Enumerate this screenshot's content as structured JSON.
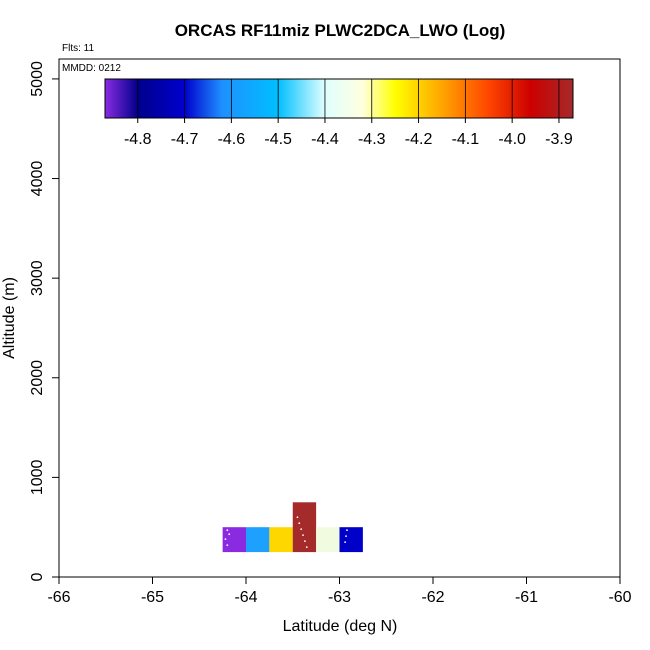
{
  "chart_data": {
    "type": "heatmap",
    "title": "ORCAS RF11miz PLWC2DCA_LWO (Log)",
    "info": {
      "flights": "Flts: 11",
      "mmdd": "MMDD: 0212"
    },
    "xlabel": "Latitude (deg N)",
    "ylabel": "Altitude (m)",
    "xlim": [
      -66,
      -60
    ],
    "ylim": [
      0,
      5200
    ],
    "x_ticks": [
      -66,
      -65,
      -64,
      -63,
      -62,
      -61,
      -60
    ],
    "y_ticks": [
      0,
      1000,
      2000,
      3000,
      4000,
      5000
    ],
    "grid": false,
    "colorbar": {
      "range": [
        -4.87,
        -3.87
      ],
      "ticks": [
        -4.8,
        -4.7,
        -4.6,
        -4.5,
        -4.4,
        -4.3,
        -4.2,
        -4.1,
        -4.0,
        -3.9
      ],
      "tick_labels": [
        "-4.8",
        "-4.7",
        "-4.6",
        "-4.5",
        "-4.4",
        "-4.3",
        "-4.2",
        "-4.1",
        "-4.0",
        "-3.9"
      ],
      "stops": [
        {
          "v": -4.87,
          "color": "#8a2be2"
        },
        {
          "v": -4.8,
          "color": "#00008b"
        },
        {
          "v": -4.7,
          "color": "#0000cd"
        },
        {
          "v": -4.62,
          "color": "#1e90ff"
        },
        {
          "v": -4.5,
          "color": "#00bfff"
        },
        {
          "v": -4.4,
          "color": "#e0ffff"
        },
        {
          "v": -4.32,
          "color": "#ffffe0"
        },
        {
          "v": -4.25,
          "color": "#ffff00"
        },
        {
          "v": -4.15,
          "color": "#ffa500"
        },
        {
          "v": -4.05,
          "color": "#ff4500"
        },
        {
          "v": -3.96,
          "color": "#cc0000"
        },
        {
          "v": -3.87,
          "color": "#a52a2a"
        }
      ]
    },
    "cells": [
      {
        "x0": -64.25,
        "x1": -64.0,
        "y0": 250,
        "y1": 500,
        "value": -4.86,
        "color": "#8a2be2"
      },
      {
        "x0": -64.0,
        "x1": -63.75,
        "y0": 250,
        "y1": 500,
        "value": -4.55,
        "color": "#1ea0ff"
      },
      {
        "x0": -63.75,
        "x1": -63.5,
        "y0": 250,
        "y1": 500,
        "value": -4.2,
        "color": "#ffd700"
      },
      {
        "x0": -63.5,
        "x1": -63.25,
        "y0": 250,
        "y1": 750,
        "value": -3.88,
        "color": "#a52a2a"
      },
      {
        "x0": -63.25,
        "x1": -63.0,
        "y0": 250,
        "y1": 500,
        "value": -4.35,
        "color": "#f0fbe0"
      },
      {
        "x0": -63.0,
        "x1": -62.75,
        "y0": 250,
        "y1": 500,
        "value": -4.75,
        "color": "#0000c8"
      }
    ],
    "flight_track": [
      {
        "lat": -64.2,
        "alt": 470
      },
      {
        "lat": -64.18,
        "alt": 430
      },
      {
        "lat": -64.22,
        "alt": 380
      },
      {
        "lat": -64.2,
        "alt": 320
      },
      {
        "lat": -63.45,
        "alt": 600
      },
      {
        "lat": -63.43,
        "alt": 540
      },
      {
        "lat": -63.41,
        "alt": 480
      },
      {
        "lat": -63.39,
        "alt": 420
      },
      {
        "lat": -63.37,
        "alt": 360
      },
      {
        "lat": -63.35,
        "alt": 300
      },
      {
        "lat": -62.92,
        "alt": 470
      },
      {
        "lat": -62.93,
        "alt": 410
      },
      {
        "lat": -62.94,
        "alt": 350
      }
    ]
  }
}
